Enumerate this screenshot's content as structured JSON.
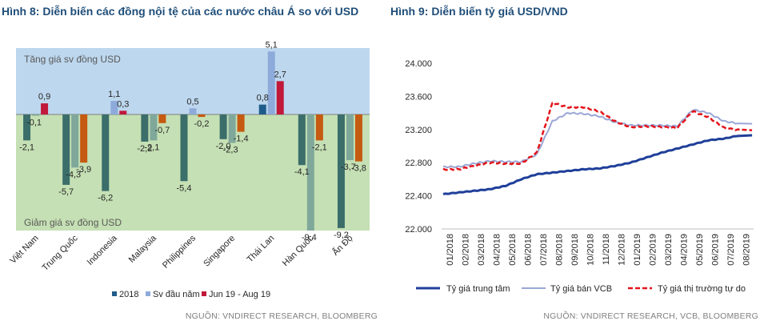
{
  "left": {
    "title": "Hình 8: Diễn biến các đồng nội tệ của các nước châu Á so với USD",
    "source": "NGUỒN: VNDIRECT RESEARCH, BLOOMBERG",
    "colors": {
      "s2018": "#1f5c8b",
      "ytd": "#8eaadb",
      "jun_aug": "#c0193a",
      "zone_up": "#bdd7ee",
      "zone_down": "#c5e0b4",
      "s2018_neg": "#3b6e6a",
      "ytd_neg": "#7fa89a",
      "jun_aug_neg": "#c55a11"
    }
  },
  "right": {
    "title": "Hình 9: Diễn biến tỷ giá USD/VND",
    "source": "NGUỒN: VNDIRECT RESEARCH, VCB, BLOOMBERG",
    "colors": {
      "central": "#1f3f99",
      "vcb": "#9aa7d6",
      "free": "#e3141b"
    }
  },
  "chart_data": [
    {
      "type": "bar",
      "title": "Hình 8: Diễn biến các đồng nội tệ của các nước châu Á so với USD",
      "zone_labels": {
        "up": "Tăng giá sv đồng USD",
        "down": "Giảm giá sv  đồng USD"
      },
      "categories": [
        "Việt Nam",
        "Trung Quốc",
        "Indonesia",
        "Malaysia",
        "Philippines",
        "Singapore",
        "Thái Lan",
        "Hàn Quốc",
        "Ấn Độ"
      ],
      "series": [
        {
          "name": "2018",
          "values": [
            -2.1,
            -5.7,
            -6.2,
            -2.2,
            -5.4,
            -2.0,
            0.8,
            -4.1,
            -9.2
          ],
          "labels": [
            "-2,1",
            "-5,7",
            "-6,2",
            "-2,2",
            "-5,4",
            "-2,0",
            "0,8",
            "-4,1",
            "-9,2"
          ]
        },
        {
          "name": "Sv đầu năm",
          "values": [
            -0.1,
            -4.3,
            1.1,
            -2.1,
            0.5,
            -2.3,
            5.1,
            -9.4,
            -3.7
          ],
          "labels": [
            "-0,1",
            "-4,3",
            "1,1",
            "-2,1",
            "0,5",
            "-2,3",
            "5,1",
            "-9,4",
            "-3,7"
          ]
        },
        {
          "name": "Jun 19 - Aug 19",
          "values": [
            0.9,
            -3.9,
            0.3,
            -0.7,
            -0.2,
            -1.4,
            2.7,
            -2.1,
            -3.8
          ],
          "labels": [
            "0,9",
            "-3,9",
            "0,3",
            "-0,7",
            "-0,2",
            "-1,4",
            "2,7",
            "-2,1",
            "-3,8"
          ]
        }
      ],
      "ylim": [
        -10,
        6.5
      ],
      "legend_position": "bottom"
    },
    {
      "type": "line",
      "title": "Hình 9: Diễn biến tỷ giá USD/VND",
      "y_ticks": [
        "24.000",
        "23.600",
        "23.200",
        "22.800",
        "22.400",
        "22.000"
      ],
      "y_tick_values": [
        24000,
        23600,
        23200,
        22800,
        22400,
        22000
      ],
      "ylim": [
        22000,
        24000
      ],
      "x_ticks": [
        "01/2018",
        "02/2018",
        "03/2018",
        "04/2018",
        "05/2018",
        "06/2018",
        "07/2018",
        "08/2018",
        "09/2018",
        "10/2018",
        "11/2018",
        "12/2018",
        "01/2019",
        "02/2019",
        "03/2019",
        "04/2019",
        "05/2019",
        "06/2019",
        "07/2019",
        "08/2019"
      ],
      "series": [
        {
          "name": "Tỷ giá trung tâm",
          "style": "solid-thick",
          "values": [
            22420,
            22440,
            22460,
            22480,
            22520,
            22600,
            22660,
            22680,
            22700,
            22720,
            22730,
            22760,
            22800,
            22860,
            22920,
            22970,
            23020,
            23070,
            23090,
            23130
          ]
        },
        {
          "name": "Tỷ giá bán VCB",
          "style": "solid",
          "values": [
            22750,
            22750,
            22790,
            22820,
            22810,
            22810,
            22900,
            23300,
            23400,
            23390,
            23360,
            23290,
            23250,
            23250,
            23250,
            23240,
            23440,
            23400,
            23300,
            23270
          ]
        },
        {
          "name": "Tỷ giá thị trường tự do",
          "style": "dashed",
          "values": [
            22720,
            22720,
            22760,
            22800,
            22790,
            22790,
            22920,
            23520,
            23470,
            23470,
            23420,
            23300,
            23230,
            23240,
            23230,
            23220,
            23420,
            23350,
            23220,
            23190
          ]
        }
      ],
      "legend_position": "bottom"
    }
  ]
}
